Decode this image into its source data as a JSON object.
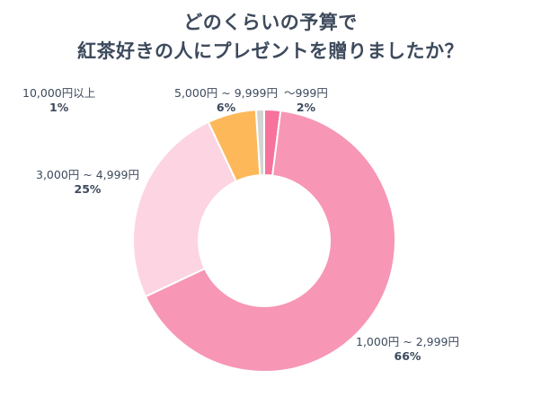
{
  "chart_data": {
    "type": "pie",
    "title_lines": [
      "どのくらいの予算で",
      "紅茶好きの人にプレゼントを贈りましたか？"
    ],
    "categories": [
      "〜999円",
      "1,000円 ~ 2,999円",
      "3,000円 ~ 4,999円",
      "5,000円 ~ 9,999円",
      "10,000円以上"
    ],
    "values": [
      2,
      66,
      25,
      6,
      1
    ],
    "value_labels": [
      "2%",
      "66%",
      "25%",
      "6%",
      "1%"
    ],
    "colors": [
      "#f7729c",
      "#f796b5",
      "#fdd4e2",
      "#fdb85a",
      "#d3d3d3"
    ],
    "donut": true
  }
}
